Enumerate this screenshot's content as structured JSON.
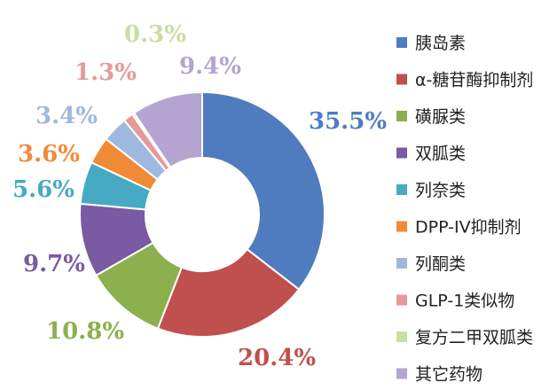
{
  "chart_data": {
    "type": "pie",
    "donut": true,
    "legend_position": "right",
    "series": [
      {
        "name": "胰岛素",
        "value": 35.5,
        "label": "35.5%",
        "color": "#4F7CBF"
      },
      {
        "name": "α-糖苷酶抑制剂",
        "value": 20.4,
        "label": "20.4%",
        "color": "#C0504D"
      },
      {
        "name": "磺脲类",
        "value": 10.8,
        "label": "10.8%",
        "color": "#8CB04E"
      },
      {
        "name": "双胍类",
        "value": 9.7,
        "label": "9.7%",
        "color": "#7A5AA2"
      },
      {
        "name": "列奈类",
        "value": 5.6,
        "label": "5.6%",
        "color": "#46AAC4"
      },
      {
        "name": "DPP-IV抑制剂",
        "value": 3.6,
        "label": "3.6%",
        "color": "#F08A37"
      },
      {
        "name": "列酮类",
        "value": 3.4,
        "label": "3.4%",
        "color": "#9FB8DF"
      },
      {
        "name": "GLP-1类似物",
        "value": 1.3,
        "label": "1.3%",
        "color": "#E39A9A"
      },
      {
        "name": "复方二甲双胍类",
        "value": 0.3,
        "label": "0.3%",
        "color": "#C9DEA2"
      },
      {
        "name": "其它药物",
        "value": 9.4,
        "label": "9.4%",
        "color": "#B3A5CF"
      }
    ]
  }
}
